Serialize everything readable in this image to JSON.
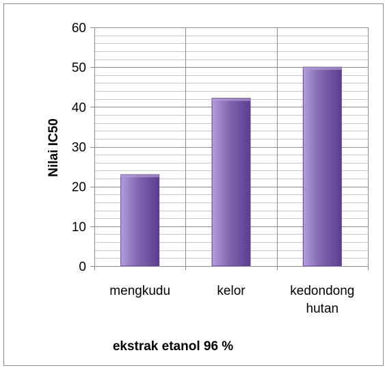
{
  "chart_data": {
    "type": "bar",
    "categories": [
      "mengkudu",
      "kelor",
      "kedondong hutan"
    ],
    "category_lines": [
      [
        "mengkudu"
      ],
      [
        "kelor"
      ],
      [
        "kedondong",
        "hutan"
      ]
    ],
    "values": [
      23,
      42.2,
      50
    ],
    "xlabel": "ekstrak etanol 96 %",
    "ylabel": "Nilai IC50",
    "ylim": [
      0,
      60
    ],
    "yticks": [
      0,
      10,
      20,
      30,
      40,
      50,
      60
    ],
    "major_step": 10,
    "minor_step": 2,
    "grid": true,
    "legend": "none",
    "colors": {
      "bar_light": "#b39ddb",
      "bar_mid": "#8066b0",
      "bar_dark": "#5b3f8f",
      "grid_major": "#8c8c8c",
      "grid_minor": "#c8c8c8",
      "axis": "#8c8c8c"
    }
  }
}
